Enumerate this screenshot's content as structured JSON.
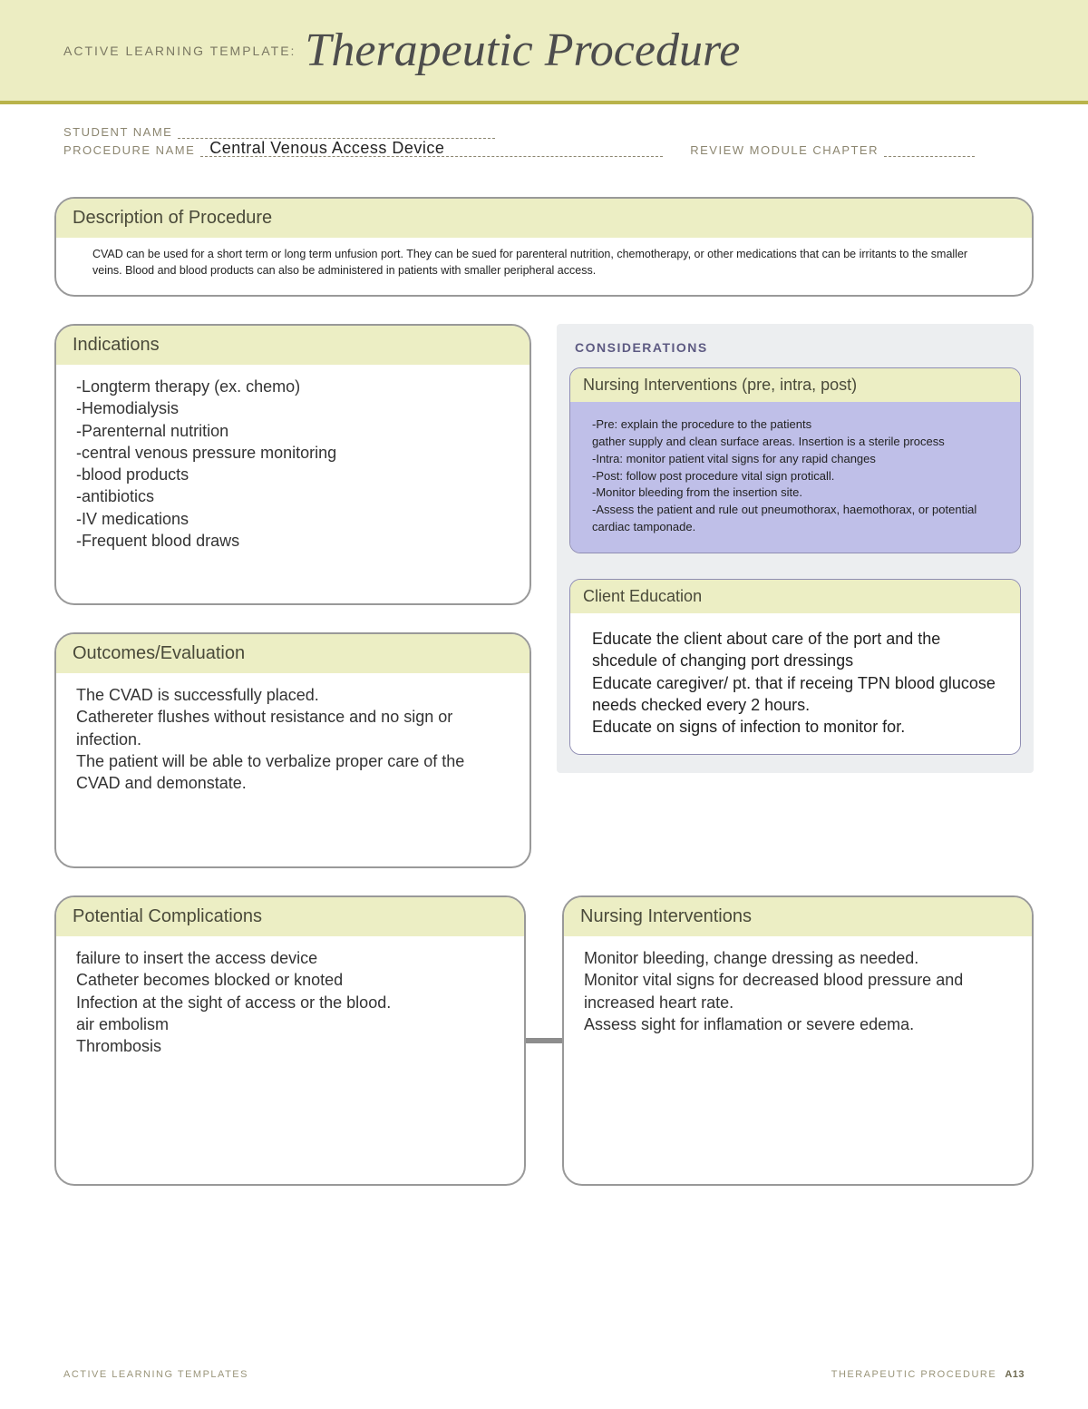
{
  "banner": {
    "prefix": "ACTIVE LEARNING TEMPLATE:",
    "title": "Therapeutic Procedure"
  },
  "meta": {
    "student_label": "STUDENT NAME",
    "procedure_label": "PROCEDURE NAME",
    "procedure_value": "Central Venous Access Device",
    "review_label": "REVIEW MODULE CHAPTER"
  },
  "description": {
    "title": "Description of Procedure",
    "body": "CVAD can be used for a short term or long term unfusion port. They can be sued for parenteral nutrition, chemotherapy, or other medications that can be irritants to the smaller veins. Blood and blood products can also be administered in patients with smaller peripheral access."
  },
  "indications": {
    "title": "Indications",
    "body": "-Longterm therapy (ex. chemo)\n-Hemodialysis\n-Parenternal nutrition\n-central venous pressure monitoring\n-blood products\n-antibiotics\n-IV medications\n-Frequent blood draws"
  },
  "considerations": {
    "title": "CONSIDERATIONS",
    "nursing": {
      "title": "Nursing Interventions (pre, intra, post)",
      "body": "-Pre: explain the procedure to the patients\ngather supply and clean surface areas. Insertion is a sterile process\n-Intra: monitor patient vital signs for any rapid changes\n-Post: follow post procedure vital sign proticall.\n-Monitor bleeding from the insertion site.\n-Assess the patient and rule out pneumothorax, haemothorax, or potential cardiac tamponade."
    },
    "education": {
      "title": "Client Education",
      "body": "Educate the client about care of the port and the shcedule of changing port dressings\nEducate caregiver/ pt. that if receing TPN blood glucose needs checked every 2 hours.\nEducate on signs of infection to monitor for."
    }
  },
  "outcomes": {
    "title": "Outcomes/Evaluation",
    "body": "The CVAD is successfully placed.\nCathereter flushes without resistance and no sign or infection.\nThe patient will be able to verbalize proper care of the CVAD and demonstate."
  },
  "complications": {
    "title": "Potential Complications",
    "body": "failure to insert the access device\nCatheter becomes blocked or knoted\nInfection at the sight of access or the blood.\nair embolism\nThrombosis"
  },
  "interventions2": {
    "title": "Nursing Interventions",
    "body": "Monitor bleeding, change dressing as needed.\nMonitor vital signs for decreased blood pressure and increased heart rate.\nAssess sight for inflamation or severe edema."
  },
  "footer": {
    "left": "ACTIVE LEARNING TEMPLATES",
    "right_label": "THERAPEUTIC PROCEDURE",
    "page": "A13"
  },
  "colors": {
    "banner_bg": "#ecedc2",
    "accent": "#b9b34b",
    "box_header": "#eceec4",
    "purple": "#bfbfe8",
    "grey_panel": "#eceef0"
  }
}
